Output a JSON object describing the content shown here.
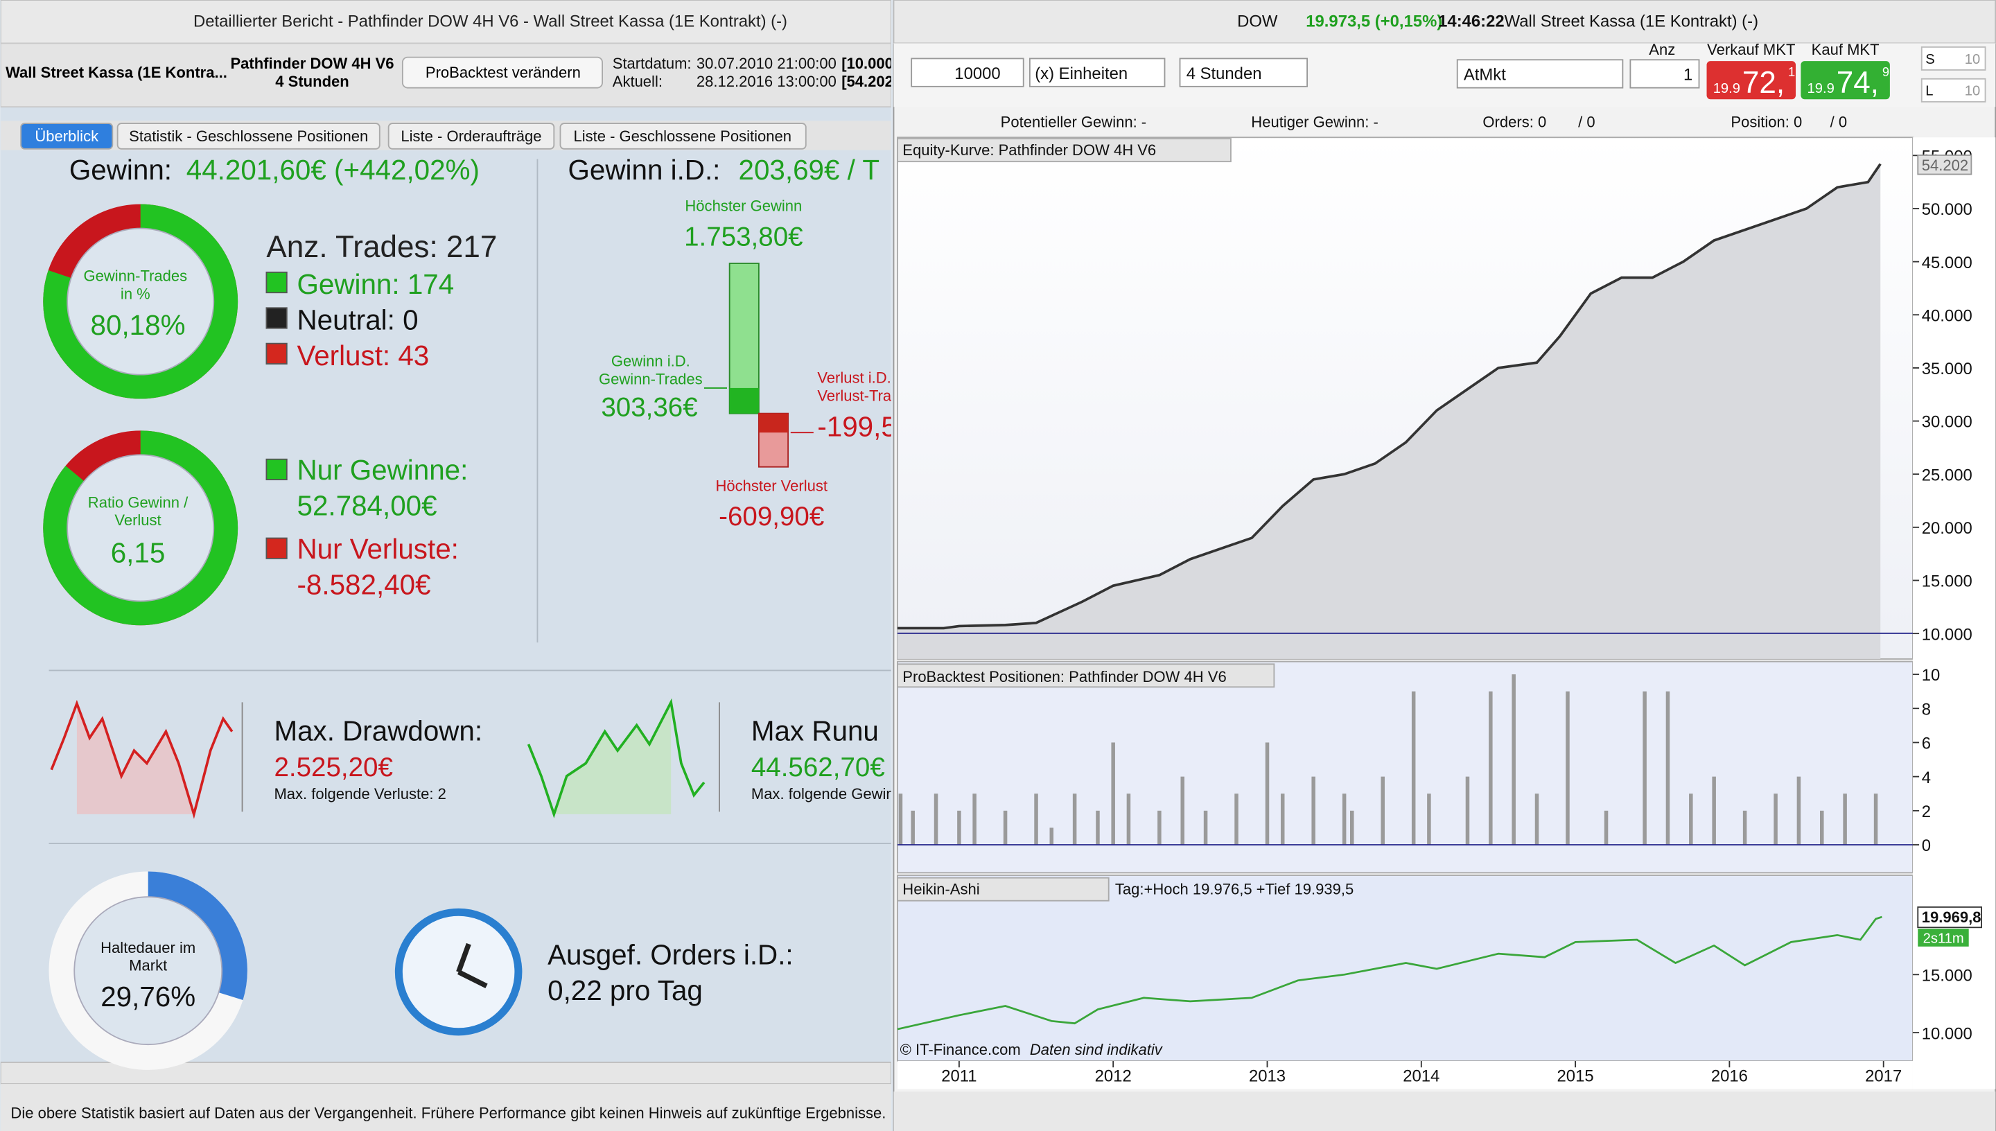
{
  "left": {
    "title": "Detaillierter Bericht - Pathfinder DOW 4H V6 - Wall Street Kassa (1E Kontrakt) (-)",
    "instrument": "Wall Street Kassa (1E Kontra...",
    "system": "Pathfinder DOW 4H V6",
    "timeframe": "4 Stunden",
    "button": "ProBacktest verändern",
    "start_label": "Startdatum:",
    "start_date": "30.07.2010 21:00:00",
    "start_value": "[10.000",
    "current_label": "Aktuell:",
    "current_date": "28.12.2016 13:00:00",
    "current_value": "[54.202",
    "tabs": [
      "Überblick",
      "Statistik - Geschlossene Positionen",
      "Liste - Orderaufträge",
      "Liste - Geschlossene Positionen"
    ],
    "profit_label": "Gewinn:",
    "profit_value": "44.201,60€ (+442,02%)",
    "avg_label": "Gewinn i.D.:",
    "avg_value": "203,69€ / T",
    "win_donut": {
      "label": [
        "Gewinn-Trades",
        "in %"
      ],
      "value_label": "80,18%",
      "percent": 80.18
    },
    "trades_total": "Anz. Trades: 217",
    "wins": "Gewinn: 174",
    "neutral": "Neutral: 0",
    "losses": "Verlust: 43",
    "ratio_donut": {
      "label": [
        "Ratio Gewinn /",
        "Verlust"
      ],
      "value_label": "6,15"
    },
    "only_wins_label": "Nur Gewinne:",
    "only_wins_value": "52.784,00€",
    "only_losses_label": "Nur Verluste:",
    "only_losses_value": "-8.582,40€",
    "best_label": "Höchster Gewinn",
    "best_value": "1.753,80€",
    "avg_win_label": [
      "Gewinn i.D.",
      "Gewinn-Trades"
    ],
    "avg_win_value": "303,36€",
    "avg_loss_label": [
      "Verlust i.D.",
      "Verlust-Tra"
    ],
    "avg_loss_value": "-199,5",
    "worst_label": "Höchster Verlust",
    "worst_value": "-609,90€",
    "drawdown_label": "Max. Drawdown:",
    "drawdown_value": "2.525,20€",
    "drawdown_sub": "Max. folgende Verluste: 2",
    "runup_label": "Max Runu",
    "runup_value": "44.562,70€",
    "runup_sub": "Max. folgende Gewin",
    "time_donut": {
      "label": [
        "Haltedauer im",
        "Markt"
      ],
      "value_label": "29,76%",
      "percent": 29.76
    },
    "orders_label": "Ausgef. Orders i.D.:",
    "orders_value": "0,22 pro Tag",
    "footer": "Die obere Statistik basiert auf Daten aus der Vergangenheit. Frühere Performance gibt keinen Hinweis auf zukünftige Ergebnisse."
  },
  "right": {
    "symbol": "DOW",
    "price": "19.973,5 (+0,15%)",
    "time": "14:46:22",
    "instrument": "Wall Street Kassa (1E Kontrakt) (-)",
    "qty": "10000",
    "units": "(x) Einheiten",
    "timeframe": "4 Stunden",
    "order_type": "AtMkt",
    "anz_label": "Anz",
    "anz": "1",
    "sell_label": "Verkauf MKT",
    "sell": [
      "19.9",
      "72,",
      "1"
    ],
    "buy_label": "Kauf MKT",
    "buy": [
      "19.9",
      "74,",
      "9"
    ],
    "s_label": "S",
    "s_value": "10",
    "l_label": "L",
    "l_value": "10",
    "potential": "Potentieller Gewinn: -",
    "today": "Heutiger Gewinn: -",
    "orders": "Orders: 0",
    "orders_sep": "/ 0",
    "position": "Position: 0",
    "position_sep": "/ 0",
    "copyright": "© IT-Finance.com",
    "note": "Daten sind indikativ"
  },
  "chart_data": [
    {
      "type": "line",
      "title": "Equity-Kurve: Pathfinder DOW 4H V6",
      "color": "#333333",
      "x": [
        2010.6,
        2010.9,
        2011.0,
        2011.3,
        2011.5,
        2011.8,
        2012.0,
        2012.3,
        2012.5,
        2012.7,
        2012.9,
        2013.1,
        2013.3,
        2013.5,
        2013.7,
        2013.9,
        2014.1,
        2014.3,
        2014.5,
        2014.75,
        2014.9,
        2015.1,
        2015.3,
        2015.5,
        2015.7,
        2015.9,
        2016.2,
        2016.5,
        2016.7,
        2016.9,
        2016.98
      ],
      "values": [
        10500,
        10500,
        10700,
        10800,
        11000,
        13000,
        14500,
        15500,
        17000,
        18000,
        19000,
        22000,
        24500,
        25000,
        26000,
        28000,
        31000,
        33000,
        35000,
        35500,
        38000,
        42000,
        43500,
        43500,
        45000,
        47000,
        48500,
        50000,
        52000,
        52500,
        54202
      ],
      "last_label": "54.202",
      "xlim": [
        2010.6,
        2017.19
      ],
      "ylim": [
        7600,
        56700
      ],
      "yticks": [
        {
          "value": 10000,
          "label": "10.000"
        },
        {
          "value": 15000,
          "label": "15.000"
        },
        {
          "value": 20000,
          "label": "20.000"
        },
        {
          "value": 25000,
          "label": "25.000"
        },
        {
          "value": 30000,
          "label": "30.000"
        },
        {
          "value": 35000,
          "label": "35.000"
        },
        {
          "value": 40000,
          "label": "40.000"
        },
        {
          "value": 45000,
          "label": "45.000"
        },
        {
          "value": 50000,
          "label": "50.000"
        },
        {
          "value": 55000,
          "label": "55.000"
        }
      ]
    },
    {
      "type": "bar",
      "title": "ProBacktest Positionen: Pathfinder DOW 4H V6",
      "color": "#9a9a9a",
      "x": [
        2010.62,
        2010.7,
        2010.85,
        2011.0,
        2011.1,
        2011.3,
        2011.5,
        2011.6,
        2011.75,
        2011.9,
        2012.0,
        2012.1,
        2012.3,
        2012.45,
        2012.6,
        2012.8,
        2013.0,
        2013.1,
        2013.3,
        2013.5,
        2013.55,
        2013.75,
        2013.95,
        2014.05,
        2014.3,
        2014.45,
        2014.6,
        2014.75,
        2014.95,
        2015.2,
        2015.45,
        2015.6,
        2015.75,
        2015.9,
        2016.1,
        2016.3,
        2016.45,
        2016.6,
        2016.75,
        2016.95
      ],
      "values": [
        3,
        2,
        3,
        2,
        3,
        2,
        3,
        1,
        3,
        2,
        6,
        3,
        2,
        4,
        2,
        3,
        6,
        3,
        4,
        3,
        2,
        4,
        9,
        3,
        4,
        9,
        10,
        3,
        9,
        2,
        9,
        9,
        3,
        4,
        2,
        3,
        4,
        2,
        3,
        3
      ],
      "xlim": [
        2010.6,
        2017.19
      ],
      "ylim": [
        -1.64,
        10.75
      ],
      "yticks": [
        0,
        2,
        4,
        6,
        8,
        10
      ]
    },
    {
      "type": "line",
      "title": "Heikin-Ashi",
      "info": "Tag:+Hoch 19.976,5 +Tief 19.939,5",
      "color": "#3aa63a",
      "x": [
        2010.6,
        2011.0,
        2011.3,
        2011.6,
        2011.75,
        2011.9,
        2012.2,
        2012.5,
        2012.9,
        2013.2,
        2013.5,
        2013.9,
        2014.1,
        2014.5,
        2014.8,
        2015.0,
        2015.4,
        2015.65,
        2015.9,
        2016.1,
        2016.4,
        2016.7,
        2016.85,
        2016.95,
        2016.99
      ],
      "values": [
        10300,
        11500,
        12300,
        11000,
        10800,
        12000,
        13000,
        12700,
        13000,
        14500,
        15000,
        16000,
        15500,
        16800,
        16500,
        17800,
        18000,
        16000,
        17500,
        15800,
        17800,
        18400,
        18000,
        19800,
        19970
      ],
      "current_label": "19.969,8",
      "timer": "2s11m",
      "xlim": [
        2010.6,
        2017.19
      ],
      "ylim": [
        7556,
        23333
      ],
      "xticks": [
        2011,
        2012,
        2013,
        2014,
        2015,
        2016,
        2017
      ],
      "yticks": [
        {
          "value": 10000,
          "label": "10.000"
        },
        {
          "value": 15000,
          "label": "15.000"
        }
      ]
    }
  ]
}
